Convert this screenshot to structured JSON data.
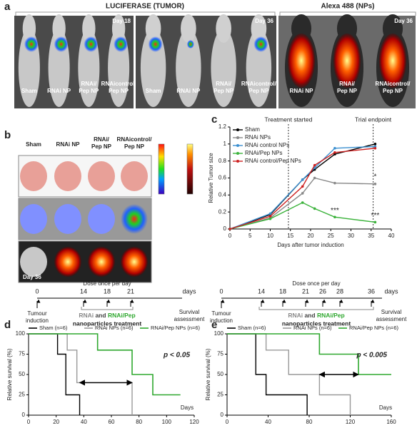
{
  "panel_a": {
    "label": "a",
    "header_luciferase": "LUCIFERASE (TUMOR)",
    "header_alexa": "Alexa 488 (NPs)",
    "images": [
      {
        "day": "Day 18",
        "mice": [
          [
            "Sham"
          ],
          [
            "RNAi NP"
          ],
          [
            "RNAi/",
            "Pep NP"
          ],
          [
            "RNAicontrol/",
            "Pep NP"
          ]
        ]
      },
      {
        "day": "Day 36",
        "mice": [
          [
            "Sham"
          ],
          [
            "RNAi NP"
          ],
          [
            "RNAi/",
            "Pep NP"
          ],
          [
            "RNAicontrol/",
            "Pep NP"
          ]
        ]
      },
      {
        "day": "Day 36",
        "mice": [
          [
            "RNAi NP"
          ],
          [
            "RNAi/",
            "Pep NP"
          ],
          [
            "RNAicontrol/",
            "Pep NP"
          ]
        ]
      }
    ]
  },
  "panel_b": {
    "label": "b",
    "columns": [
      [
        "Sham"
      ],
      [
        "RNAi NP"
      ],
      [
        "RNAi/",
        "Pep NP"
      ],
      [
        "RNAicontrol/",
        "Pep NP"
      ]
    ],
    "day": "Day 36"
  },
  "panel_c": {
    "label": "c"
  },
  "panel_d": {
    "label": "d",
    "timeline": {
      "start": "0",
      "start_label": [
        "Tumour",
        "induction"
      ],
      "doses": [
        "14",
        "18",
        "21"
      ],
      "unit": "days",
      "end_label": [
        "Survival",
        "assessment"
      ],
      "dose_note": "Dose once per day",
      "treatment": [
        "RNAi",
        " and ",
        "RNAi/Pep",
        "nanoparticles treatment"
      ]
    }
  },
  "panel_e": {
    "label": "e",
    "timeline": {
      "start": "0",
      "start_label": [
        "Tumour",
        "induction"
      ],
      "doses": [
        "14",
        "18",
        "21",
        "26",
        "28",
        "36"
      ],
      "unit": "days",
      "end_label": [
        "Survival",
        "assessment"
      ],
      "dose_note": "Dose once per day",
      "treatment": [
        "RNAi",
        " and ",
        "RNAi/Pep",
        "nanoparticles treatment"
      ]
    }
  },
  "chart_data": [
    {
      "type": "line",
      "xlabel": "Days after tumor induction",
      "ylabel": "Relative Tumor size",
      "x": [
        0,
        10,
        18,
        21,
        26,
        36
      ],
      "xlim": [
        0,
        40
      ],
      "xticks": [
        0,
        5,
        10,
        15,
        20,
        25,
        30,
        35,
        40
      ],
      "ylim": [
        0,
        1.2
      ],
      "yticks": [
        0,
        0.2,
        0.4,
        0.6,
        0.8,
        1,
        1.2
      ],
      "series": [
        {
          "name": "Sham",
          "color": "#000000",
          "values": [
            0,
            0.17,
            0.58,
            0.7,
            0.88,
            1.0
          ]
        },
        {
          "name": "RNAi NPs",
          "color": "#888888",
          "values": [
            0,
            0.13,
            0.42,
            0.6,
            0.54,
            0.53
          ]
        },
        {
          "name": "RNAi control NPs",
          "color": "#3a8fd0",
          "values": [
            0,
            0.18,
            0.58,
            0.72,
            0.95,
            0.97
          ]
        },
        {
          "name": "RNAi/Pep NPs",
          "color": "#3cb33c",
          "values": [
            0,
            0.12,
            0.31,
            0.24,
            0.14,
            0.08
          ]
        },
        {
          "name": "RNAi control/Pep NPs",
          "color": "#cc2020",
          "values": [
            0,
            0.15,
            0.5,
            0.75,
            0.9,
            0.95
          ]
        }
      ],
      "vlines": [
        {
          "value": 14.5,
          "label": "Treatment started"
        },
        {
          "value": 35.5,
          "label": "Trial endpoint"
        }
      ],
      "annotations": [
        "***",
        "***",
        "*"
      ]
    },
    {
      "type": "step",
      "xlabel": "Days",
      "ylabel": "Relative survival (%)",
      "xlim": [
        0,
        120
      ],
      "xticks": [
        0,
        20,
        40,
        60,
        80,
        100,
        120
      ],
      "ylim": [
        0,
        100
      ],
      "yticks": [
        0,
        25,
        50,
        75,
        100
      ],
      "series": [
        {
          "name": "Sham (n=6)",
          "color": "#000000",
          "x": [
            0,
            21,
            27,
            37
          ],
          "values": [
            100,
            75,
            25,
            0
          ]
        },
        {
          "name": "RNAi NPs (n=6)",
          "color": "#999999",
          "x": [
            0,
            28,
            35,
            75
          ],
          "values": [
            100,
            80,
            40,
            0
          ]
        },
        {
          "name": "RNAi/Pep NPs (n=6)",
          "color": "#2fa82f",
          "x": [
            0,
            50,
            75,
            90,
            110
          ],
          "values": [
            100,
            80,
            50,
            25,
            25
          ]
        }
      ],
      "arrow": {
        "x": [
          37,
          75
        ],
        "y": 40
      },
      "pvalue": "p < 0.05"
    },
    {
      "type": "step",
      "xlabel": "Days",
      "ylabel": "Relative survival (%)",
      "xlim": [
        0,
        160
      ],
      "xticks": [
        0,
        40,
        80,
        120,
        160
      ],
      "ylim": [
        0,
        100
      ],
      "yticks": [
        0,
        25,
        50,
        75,
        100
      ],
      "series": [
        {
          "name": "Sham (n=6)",
          "color": "#000000",
          "x": [
            0,
            28,
            38,
            78
          ],
          "values": [
            100,
            50,
            25,
            0
          ]
        },
        {
          "name": "RNAi NPs (n=6)",
          "color": "#999999",
          "x": [
            0,
            38,
            60,
            90,
            120
          ],
          "values": [
            100,
            80,
            50,
            25,
            0
          ]
        },
        {
          "name": "RNAi/Pep NPs (n=6)",
          "color": "#2fa82f",
          "x": [
            0,
            90,
            128,
            160
          ],
          "values": [
            100,
            75,
            50,
            50
          ]
        }
      ],
      "arrow": {
        "x": [
          90,
          128
        ],
        "y": 50
      },
      "pvalue": "p < 0.005"
    }
  ]
}
